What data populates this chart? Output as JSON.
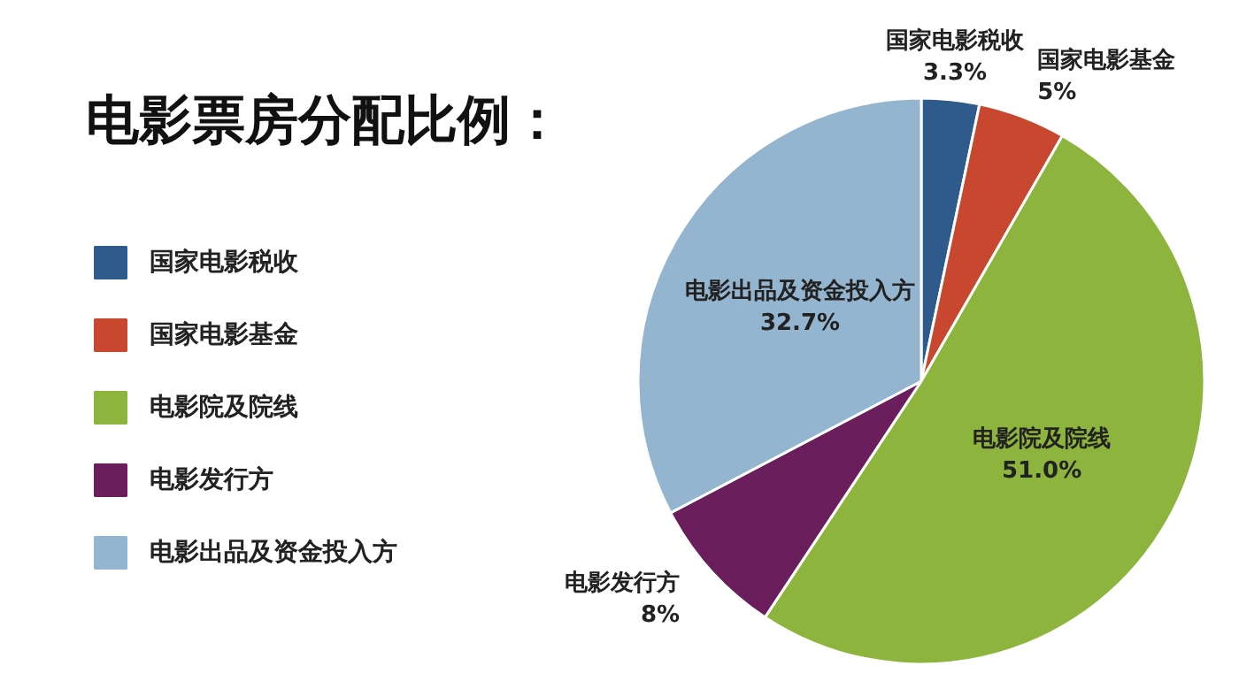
{
  "chart_data": {
    "type": "pie",
    "title": "电影票房分配比例：",
    "categories": [
      "国家电影税收",
      "国家电影基金",
      "电影院及院线",
      "电影发行方",
      "电影出品及资金投入方"
    ],
    "values": [
      3.3,
      5,
      51.0,
      8,
      32.7
    ],
    "value_labels": [
      "3.3%",
      "5%",
      "51.0%",
      "8%",
      "32.7%"
    ],
    "colors": [
      "#2e5a8c",
      "#c8472f",
      "#8db43c",
      "#6a1f5c",
      "#94b5d0"
    ],
    "legend": "left"
  }
}
